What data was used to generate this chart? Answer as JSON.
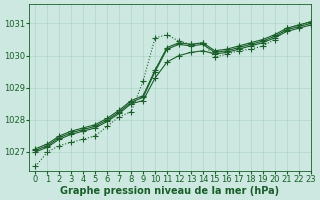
{
  "background_color": "#cce8e0",
  "grid_color": "#b0d4c8",
  "line_color": "#1a5e2a",
  "xlabel": "Graphe pression niveau de la mer (hPa)",
  "ylim": [
    1026.4,
    1031.6
  ],
  "xlim": [
    -0.5,
    23
  ],
  "yticks": [
    1027,
    1028,
    1029,
    1030,
    1031
  ],
  "xticks": [
    0,
    1,
    2,
    3,
    4,
    5,
    6,
    7,
    8,
    9,
    10,
    11,
    12,
    13,
    14,
    15,
    16,
    17,
    18,
    19,
    20,
    21,
    22,
    23
  ],
  "series_solid": [
    [
      1027.0,
      1027.15,
      1027.4,
      1027.55,
      1027.65,
      1027.75,
      1027.95,
      1028.2,
      1028.5,
      1028.6,
      1029.3,
      1029.8,
      1030.0,
      1030.1,
      1030.15,
      1030.05,
      1030.1,
      1030.2,
      1030.3,
      1030.4,
      1030.55,
      1030.75,
      1030.85,
      1030.95
    ],
    [
      1027.1,
      1027.25,
      1027.5,
      1027.65,
      1027.75,
      1027.85,
      1028.05,
      1028.3,
      1028.6,
      1028.75,
      1029.55,
      1030.25,
      1030.4,
      1030.35,
      1030.4,
      1030.15,
      1030.2,
      1030.3,
      1030.4,
      1030.5,
      1030.65,
      1030.85,
      1030.95,
      1031.05
    ],
    [
      1027.05,
      1027.2,
      1027.45,
      1027.6,
      1027.7,
      1027.8,
      1028.0,
      1028.25,
      1028.55,
      1028.7,
      1029.5,
      1030.2,
      1030.35,
      1030.3,
      1030.35,
      1030.1,
      1030.15,
      1030.25,
      1030.35,
      1030.45,
      1030.6,
      1030.8,
      1030.9,
      1031.0
    ]
  ],
  "series_dotted": [
    1026.55,
    1027.0,
    1027.2,
    1027.3,
    1027.4,
    1027.5,
    1027.8,
    1028.1,
    1028.25,
    1029.2,
    1030.55,
    1030.65,
    1030.45,
    1030.35,
    1030.4,
    1029.95,
    1030.05,
    1030.15,
    1030.2,
    1030.3,
    1030.5,
    1030.85,
    1030.95,
    1031.05
  ],
  "marker": "+",
  "markersize": 4,
  "linewidth": 0.8,
  "xlabel_fontsize": 7,
  "tick_fontsize": 6
}
